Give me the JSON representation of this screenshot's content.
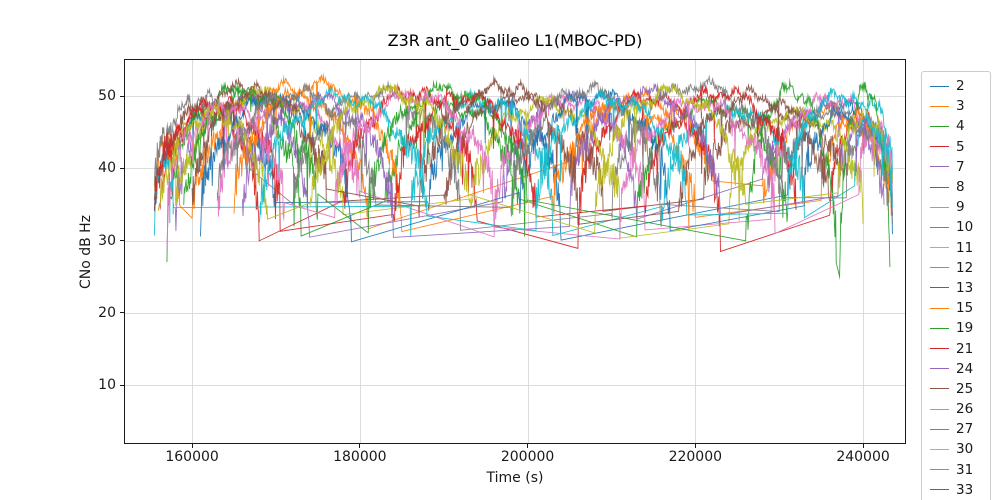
{
  "chart_data": {
    "type": "line",
    "title": "Z3R ant_0 Galileo L1(MBOC-PD)",
    "xlabel": "Time (s)",
    "ylabel": "CNo dB Hz",
    "xlim": [
      152000,
      245000
    ],
    "ylim": [
      2,
      55
    ],
    "xticks": [
      160000,
      180000,
      200000,
      220000,
      240000
    ],
    "yticks": [
      10,
      20,
      30,
      40,
      50
    ],
    "grid": true,
    "legend_position": "right-outside",
    "series_note": "Each pass is [start_time_s, end_time_s, peak_CNo_dBHz, edge_CNo_dBHz]; arcs are noisy satellite passes, gaps between passes are connected by straight thin lines",
    "series": [
      {
        "name": "2",
        "color": "#1f77b4",
        "passes": [
          [
            155500,
            170000,
            47.5,
            34
          ],
          [
            188000,
            204000,
            49,
            33
          ],
          [
            231000,
            243500,
            49,
            35
          ]
        ]
      },
      {
        "name": "3",
        "color": "#ff7f0e",
        "passes": [
          [
            155500,
            158500,
            44,
            36
          ],
          [
            160000,
            181000,
            51,
            33
          ],
          [
            205000,
            222000,
            49.5,
            38
          ],
          [
            228000,
            243500,
            48,
            34
          ]
        ]
      },
      {
        "name": "4",
        "color": "#2ca02c",
        "passes": [
          [
            157000,
            173000,
            50.5,
            33
          ],
          [
            183000,
            199000,
            48.5,
            34
          ],
          [
            213000,
            231000,
            49,
            33
          ]
        ]
      },
      {
        "name": "5",
        "color": "#d62728",
        "passes": [
          [
            156000,
            168000,
            48,
            32
          ],
          [
            178000,
            194000,
            50.5,
            33
          ],
          [
            206000,
            223000,
            50,
            31.5
          ],
          [
            236000,
            243500,
            47,
            34
          ]
        ]
      },
      {
        "name": "7",
        "color": "#9467bd",
        "passes": [
          [
            158000,
            174000,
            49.5,
            33
          ],
          [
            197000,
            213000,
            49.8,
            34
          ],
          [
            228000,
            242500,
            48.5,
            35
          ]
        ]
      },
      {
        "name": "8",
        "color": "#8c564b",
        "passes": [
          [
            155500,
            176000,
            50.8,
            36
          ],
          [
            190000,
            209000,
            50.5,
            34
          ],
          [
            221000,
            238000,
            47.5,
            38
          ]
        ]
      },
      {
        "name": "9",
        "color": "#e377c2",
        "passes": [
          [
            163000,
            180000,
            49,
            34
          ],
          [
            196000,
            214000,
            49.5,
            33
          ],
          [
            229000,
            243200,
            49.5,
            36
          ]
        ]
      },
      {
        "name": "10",
        "color": "#7f7f7f",
        "passes": [
          [
            155500,
            167000,
            49.5,
            38
          ],
          [
            172000,
            192000,
            50.5,
            34
          ],
          [
            210000,
            230500,
            51.5,
            34
          ],
          [
            238000,
            243500,
            45,
            38
          ]
        ]
      },
      {
        "name": "11",
        "color": "#bcbd22",
        "passes": [
          [
            158000,
            178000,
            50.2,
            34
          ],
          [
            193000,
            211000,
            49,
            33
          ],
          [
            224000,
            240000,
            47.5,
            35
          ]
        ]
      },
      {
        "name": "12",
        "color": "#17becf",
        "passes": [
          [
            155500,
            157800,
            41,
            33
          ],
          [
            186000,
            203000,
            49.5,
            33
          ],
          [
            216000,
            233000,
            48,
            34
          ],
          [
            239000,
            243500,
            49,
            38
          ]
        ]
      },
      {
        "name": "13",
        "color": "#1f77b4",
        "passes": [
          [
            161000,
            179000,
            49.5,
            33
          ],
          [
            199000,
            217000,
            50,
            34
          ],
          [
            233000,
            243500,
            48,
            36
          ]
        ]
      },
      {
        "name": "15",
        "color": "#ff7f0e",
        "passes": [
          [
            165000,
            185000,
            51.5,
            34
          ],
          [
            203000,
            220000,
            49,
            33
          ],
          [
            235000,
            243500,
            47,
            36
          ]
        ]
      },
      {
        "name": "19",
        "color": "#2ca02c",
        "passes": [
          [
            159000,
            175000,
            50.5,
            33
          ],
          [
            181000,
            200000,
            50.8,
            34
          ],
          [
            226000,
            236800,
            51,
            28
          ],
          [
            237200,
            243200,
            51,
            27
          ]
        ]
      },
      {
        "name": "21",
        "color": "#d62728",
        "passes": [
          [
            155500,
            170500,
            49,
            34
          ],
          [
            184000,
            201000,
            50,
            33
          ],
          [
            214000,
            232000,
            50.5,
            34
          ]
        ]
      },
      {
        "name": "24",
        "color": "#9467bd",
        "passes": [
          [
            166000,
            184000,
            49.5,
            33
          ],
          [
            205000,
            223000,
            50.5,
            34
          ],
          [
            237000,
            243500,
            46,
            37
          ]
        ]
      },
      {
        "name": "25",
        "color": "#8c564b",
        "passes": [
          [
            160000,
            176000,
            50.5,
            35
          ],
          [
            187000,
            206000,
            51,
            34
          ],
          [
            218000,
            236000,
            50,
            34
          ]
        ]
      },
      {
        "name": "26",
        "color": "#e377c2",
        "passes": [
          [
            157000,
            171000,
            48.5,
            33
          ],
          [
            177000,
            196000,
            50,
            34
          ],
          [
            211000,
            229500,
            49,
            33
          ],
          [
            239500,
            243500,
            46,
            38
          ]
        ]
      },
      {
        "name": "27",
        "color": "#7f7f7f",
        "passes": [
          [
            163000,
            182000,
            50.3,
            34
          ],
          [
            198000,
            216000,
            50.8,
            33
          ],
          [
            230000,
            243000,
            48,
            35
          ]
        ]
      },
      {
        "name": "30",
        "color": "#bcbd22",
        "passes": [
          [
            156000,
            169000,
            47.5,
            33
          ],
          [
            174000,
            193000,
            50.5,
            34
          ],
          [
            208000,
            226000,
            50.5,
            33
          ],
          [
            237000,
            243500,
            47,
            36
          ]
        ]
      },
      {
        "name": "31",
        "color": "#17becf",
        "passes": [
          [
            168000,
            188000,
            50,
            33
          ],
          [
            201000,
            219000,
            49.5,
            34
          ],
          [
            231000,
            243500,
            50,
            35
          ]
        ]
      },
      {
        "name": "33",
        "color": "#1f77b4",
        "passes": []
      }
    ]
  }
}
